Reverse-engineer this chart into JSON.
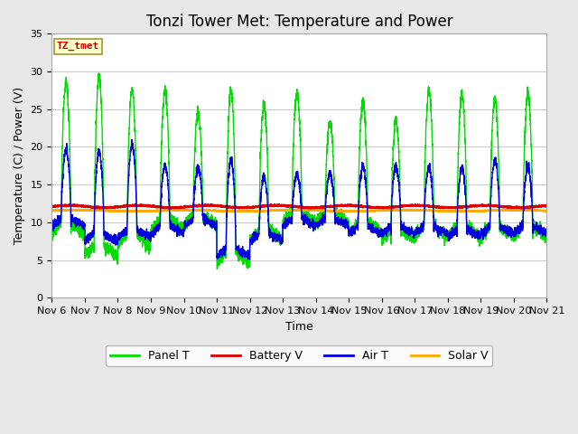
{
  "title": "Tonzi Tower Met: Temperature and Power",
  "xlabel": "Time",
  "ylabel": "Temperature (C) / Power (V)",
  "ylim": [
    0,
    35
  ],
  "outer_bg": "#e8e8e8",
  "plot_bg": "#ffffff",
  "annotation_text": "TZ_tmet",
  "annotation_color": "#cc0000",
  "annotation_bg": "#ffffcc",
  "annotation_edge": "#999933",
  "x_tick_labels": [
    "Nov 6",
    "Nov 7",
    "Nov 8",
    "Nov 9",
    "Nov 10",
    "Nov 11",
    "Nov 12",
    "Nov 13",
    "Nov 14",
    "Nov 15",
    "Nov 16",
    "Nov 17",
    "Nov 18",
    "Nov 19",
    "Nov 20",
    "Nov 21"
  ],
  "grid_color": "#cccccc",
  "line_colors": {
    "panel_t": "#00dd00",
    "battery_v": "#dd0000",
    "air_t": "#0000dd",
    "solar_v": "#ffaa00"
  },
  "legend_labels": [
    "Panel T",
    "Battery V",
    "Air T",
    "Solar V"
  ],
  "title_fontsize": 12,
  "label_fontsize": 9,
  "tick_fontsize": 8,
  "n_days": 15,
  "pts_per_day": 288,
  "panel_base": 11.5,
  "panel_peaks": [
    28.5,
    29.5,
    27.5,
    27.5,
    24.5,
    27.5,
    25.5,
    27.0,
    23.0,
    26.0,
    23.5,
    27.5,
    27.0,
    26.5,
    27.0
  ],
  "panel_troughs": [
    8.5,
    5.5,
    7.0,
    9.0,
    9.5,
    4.5,
    7.5,
    10.0,
    10.0,
    8.5,
    7.5,
    8.0,
    8.0,
    8.0,
    8.0
  ],
  "air_peaks": [
    21.5,
    21.5,
    22.5,
    19.0,
    18.5,
    20.5,
    17.5,
    17.5,
    17.5,
    19.0,
    19.0,
    19.0,
    19.0,
    20.0,
    19.0
  ],
  "air_troughs": [
    9.5,
    7.5,
    8.0,
    8.5,
    9.5,
    5.5,
    7.5,
    9.5,
    9.5,
    8.5,
    8.5,
    8.5,
    8.0,
    8.5,
    8.5
  ],
  "battery_mean": 12.1,
  "solar_mean": 11.55
}
